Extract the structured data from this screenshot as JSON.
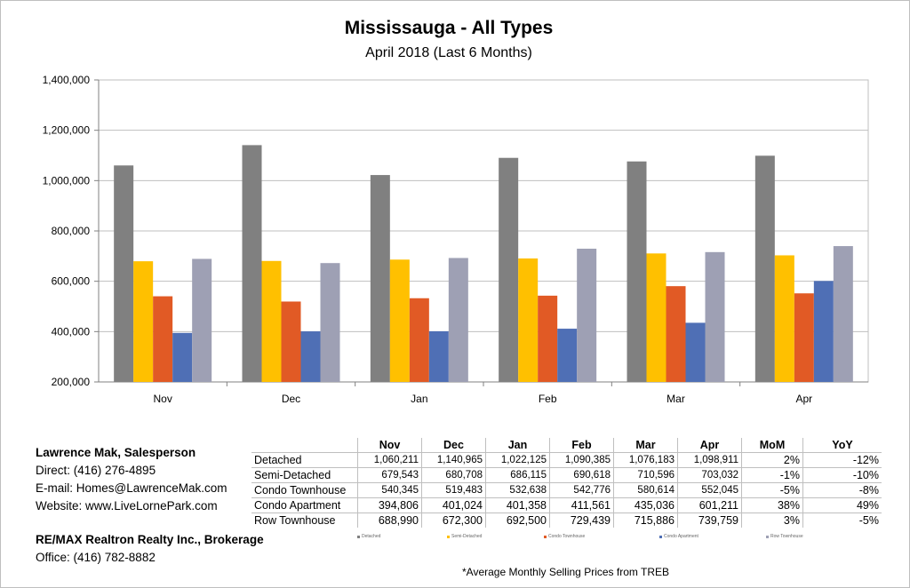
{
  "title": "Mississauga - All Types",
  "subtitle": "April 2018 (Last 6 Months)",
  "chart_data": {
    "type": "bar",
    "title": "Mississauga - All Types",
    "subtitle": "April 2018 (Last 6 Months)",
    "categories": [
      "Nov",
      "Dec",
      "Jan",
      "Feb",
      "Mar",
      "Apr"
    ],
    "ylim": [
      200000,
      1400000
    ],
    "yticks": [
      "200,000",
      "400,000",
      "600,000",
      "800,000",
      "1,000,000",
      "1,200,000",
      "1,400,000"
    ],
    "grid": true,
    "series": [
      {
        "name": "Detached",
        "color": "#808080",
        "values": [
          1060211,
          1140965,
          1022125,
          1090385,
          1076183,
          1098911
        ]
      },
      {
        "name": "Semi-Detached",
        "color": "#ffc000",
        "values": [
          679543,
          680708,
          686115,
          690618,
          710596,
          703032
        ]
      },
      {
        "name": "Condo Townhouse",
        "color": "#e15a25",
        "values": [
          540345,
          519483,
          532638,
          542776,
          580614,
          552045
        ]
      },
      {
        "name": "Condo Apartment",
        "color": "#4f6fb5",
        "values": [
          394806,
          401024,
          401358,
          411561,
          435036,
          601211
        ]
      },
      {
        "name": "Row Townhouse",
        "color": "#9ea0b4",
        "values": [
          688990,
          672300,
          692500,
          729439,
          715886,
          739759
        ]
      }
    ]
  },
  "table": {
    "headers": [
      "Nov",
      "Dec",
      "Jan",
      "Feb",
      "Mar",
      "Apr",
      "MoM",
      "YoY"
    ],
    "rows": [
      {
        "label": "Detached",
        "cells": [
          "1,060,211",
          "1,140,965",
          "1,022,125",
          "1,090,385",
          "1,076,183",
          "1,098,911",
          "2%",
          "-12%"
        ]
      },
      {
        "label": "Semi-Detached",
        "cells": [
          "679,543",
          "680,708",
          "686,115",
          "690,618",
          "710,596",
          "703,032",
          "-1%",
          "-10%"
        ]
      },
      {
        "label": "Condo Townhouse",
        "cells": [
          "540,345",
          "519,483",
          "532,638",
          "542,776",
          "580,614",
          "552,045",
          "-5%",
          "-8%"
        ]
      },
      {
        "label": "Condo Apartment",
        "cells": [
          "394,806",
          "401,024",
          "401,358",
          "411,561",
          "435,036",
          "601,211",
          "38%",
          "49%"
        ]
      },
      {
        "label": "Row Townhouse",
        "cells": [
          "688,990",
          "672,300",
          "692,500",
          "729,439",
          "715,886",
          "739,759",
          "3%",
          "-5%"
        ]
      }
    ]
  },
  "contact": {
    "name": "Lawrence Mak, Salesperson",
    "direct": "Direct:  (416) 276-4895",
    "email": "E-mail:  Homes@LawrenceMak.com",
    "website": "Website: www.LiveLornePark.com",
    "brokerage": "RE/MAX Realtron Realty Inc., Brokerage",
    "office": "Office: (416) 782-8882"
  },
  "legend_labels": [
    "Detached",
    "Semi-Detached",
    "Condo Townhouse",
    "Condo Apartment",
    "Row Townhouse"
  ],
  "source_note": "*Average Monthly Selling Prices  from TREB"
}
